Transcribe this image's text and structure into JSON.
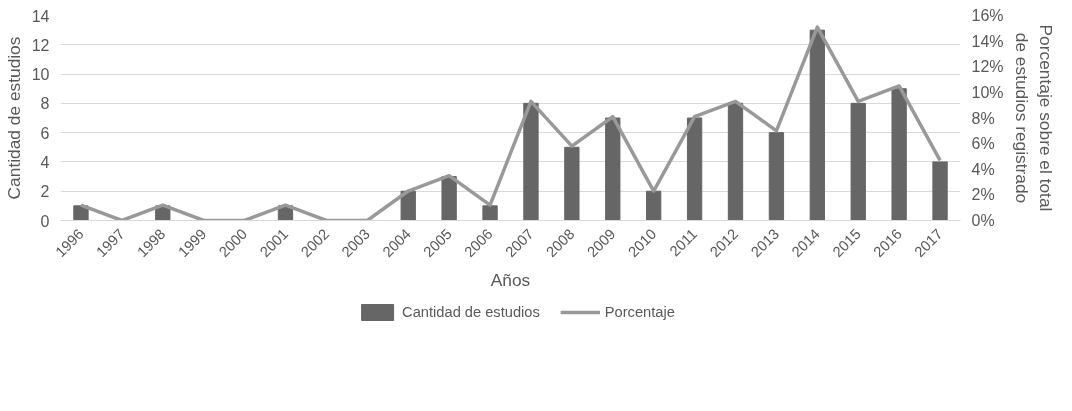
{
  "chart_data": {
    "type": "bar",
    "categories": [
      "1996",
      "1997",
      "1998",
      "1999",
      "2000",
      "2001",
      "2002",
      "2003",
      "2004",
      "2005",
      "2006",
      "2007",
      "2008",
      "2009",
      "2010",
      "2011",
      "2012",
      "2013",
      "2014",
      "2015",
      "2016",
      "2017"
    ],
    "xlabel": "Años",
    "ylabel": "Cantidad de estudios",
    "y2label": "Porcentaje sobre el total de estudios registrado",
    "series": [
      {
        "name": "Cantidad de estudios",
        "color": "#666666",
        "values": [
          1,
          0,
          1,
          0,
          0,
          1,
          0,
          0,
          2,
          3,
          1,
          8,
          5,
          7,
          2,
          7,
          8,
          6,
          13,
          8,
          9,
          4
        ]
      },
      {
        "name": "Porcentaje",
        "type": "line",
        "axis": "y2",
        "color": "#999999",
        "values": [
          1.2,
          0,
          1.2,
          0,
          0,
          1.2,
          0,
          0,
          2.3,
          3.5,
          1.2,
          9.3,
          5.8,
          8.1,
          2.3,
          8.1,
          9.3,
          7.0,
          15.1,
          9.3,
          10.5,
          4.7
        ]
      }
    ],
    "ylim": [
      0,
      14
    ],
    "yticks": [
      0,
      2,
      4,
      6,
      8,
      10,
      12,
      14
    ],
    "y2lim": [
      0,
      16
    ],
    "y2ticks": [
      {
        "value": 0,
        "label": "0%"
      },
      {
        "value": 2,
        "label": "2%"
      },
      {
        "value": 4,
        "label": "4%"
      },
      {
        "value": 6,
        "label": "6%"
      },
      {
        "value": 8,
        "label": "8%"
      },
      {
        "value": 10,
        "label": "10%"
      },
      {
        "value": 12,
        "label": "12%"
      },
      {
        "value": 14,
        "label": "14%"
      },
      {
        "value": 16,
        "label": "16%"
      }
    ],
    "grid": "y",
    "legend": "bottom",
    "line_style": "solid",
    "marker": "none"
  }
}
